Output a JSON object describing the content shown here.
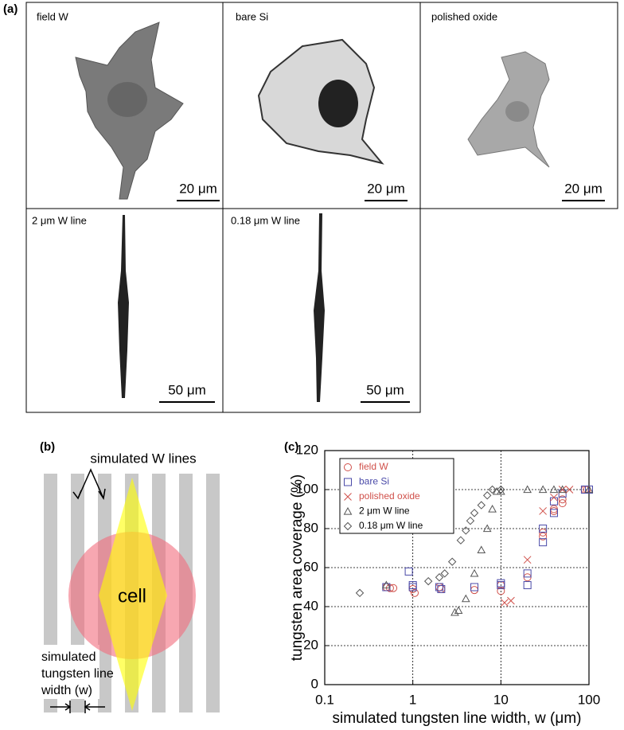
{
  "panel_a": {
    "label": "(a)",
    "images": [
      {
        "label": "field W",
        "scale_bar": "20 μm"
      },
      {
        "label": "bare Si",
        "scale_bar": "20 μm"
      },
      {
        "label": "polished oxide",
        "scale_bar": "20 μm"
      },
      {
        "label": "2 μm W line",
        "scale_bar": "50 μm"
      },
      {
        "label": "0.18 μm W line",
        "scale_bar": "50 μm"
      }
    ]
  },
  "panel_b": {
    "label": "(b)",
    "lines_label": "simulated W lines",
    "cell_label": "cell",
    "width_label": [
      "simulated",
      "tungsten line",
      "width (w)"
    ]
  },
  "chart_data": {
    "type": "scatter",
    "panel_label": "(c)",
    "x_label": "simulated tungsten line width, w (μm)",
    "y_label": "tungsten area coverage (%)",
    "x_scale": "log",
    "xlim": [
      0.1,
      100
    ],
    "xticks": [
      0.1,
      1,
      10,
      100
    ],
    "ylim": [
      0,
      120
    ],
    "yticks": [
      0,
      20,
      40,
      60,
      80,
      100,
      120
    ],
    "grid": true,
    "legend": "upper left",
    "series": [
      {
        "name": "field W",
        "color": "#d0504a",
        "marker": "circle",
        "x": [
          0.5,
          0.55,
          0.6,
          1,
          1.05,
          2,
          2.1,
          5,
          10,
          10,
          20,
          30,
          30,
          40,
          40,
          50,
          50,
          90,
          95
        ],
        "values": [
          50,
          49.5,
          49.5,
          49,
          47,
          50,
          49,
          48.5,
          48,
          51,
          55,
          76,
          78,
          89,
          90,
          93,
          95,
          100,
          100
        ]
      },
      {
        "name": "bare Si",
        "color": "#4a4aa8",
        "marker": "square",
        "x": [
          0.5,
          0.9,
          1,
          1,
          2,
          2.1,
          5,
          10,
          10,
          20,
          20,
          30,
          30,
          40,
          40,
          50,
          90,
          100
        ],
        "values": [
          50,
          58,
          51,
          50,
          50,
          49,
          50,
          51,
          52,
          57,
          51,
          73,
          80,
          94,
          88,
          98,
          100,
          100
        ]
      },
      {
        "name": "polished oxide",
        "color": "#d0504a",
        "marker": "x",
        "x": [
          11,
          13,
          20,
          30,
          40,
          50,
          60
        ],
        "values": [
          42,
          43,
          64,
          89,
          96,
          100,
          100
        ]
      },
      {
        "name": "2 μm W line",
        "color": "#555555",
        "marker": "triangle",
        "x": [
          0.5,
          3,
          3.3,
          4,
          5,
          6,
          7,
          8,
          9,
          10,
          20,
          30,
          40,
          50,
          100
        ],
        "values": [
          51,
          37,
          38,
          44,
          57,
          69,
          80,
          90,
          99,
          99,
          100,
          100,
          100,
          100,
          100
        ]
      },
      {
        "name": "0.18 μm W line",
        "color": "#555555",
        "marker": "diamond",
        "x": [
          0.25,
          1.5,
          2,
          2.3,
          2.8,
          3.5,
          4,
          4.5,
          5,
          6,
          7,
          8,
          10
        ],
        "values": [
          47,
          53,
          55,
          57,
          63,
          74,
          79,
          84,
          88,
          92,
          97,
          100,
          100
        ]
      }
    ]
  }
}
